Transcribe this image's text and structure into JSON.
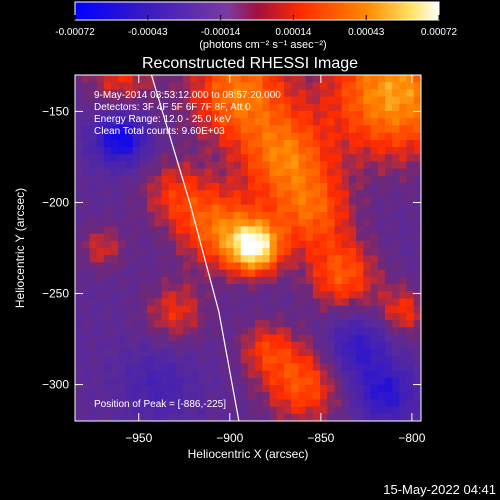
{
  "chart_data": {
    "type": "heatmap",
    "title": "Reconstructed RHESSI Image",
    "xlabel": "Heliocentric X (arcsec)",
    "ylabel": "Heliocentric Y (arcsec)",
    "xlim": [
      -985,
      -795
    ],
    "ylim": [
      -320,
      -130
    ],
    "xticks": [
      -950,
      -900,
      -850,
      -800
    ],
    "yticks": [
      -150,
      -200,
      -250,
      -300
    ],
    "colorbar": {
      "ticks": [
        "-0.00072",
        "-0.00043",
        "-0.00014",
        "0.00014",
        "0.00043",
        "0.00072"
      ],
      "units_label": "(photons cm⁻² s⁻¹ asec⁻²)",
      "range": [
        -0.00072,
        0.00072
      ],
      "colors": [
        "#0000ff",
        "#5a2a9a",
        "#ff2a00",
        "#ff8800",
        "#ffff60",
        "#ffffff"
      ]
    },
    "annotations": [
      "9-May-2014 08:53:12.000 to 08:57:20.000",
      "Detectors: 3F 4F 5F 6F 7F 8F, Att 0",
      "Energy Range: 12.0 - 25.0 keV",
      "Clean     Total counts: 9.60E+03"
    ],
    "peak_label": "Position of Peak = [-886,-225]",
    "peak_position": [
      -886,
      -225
    ],
    "limb_arc": [
      [
        -943,
        -130
      ],
      [
        -922,
        -200
      ],
      [
        -906,
        -260
      ],
      [
        -895,
        -320
      ]
    ],
    "blobs": [
      {
        "x": -810,
        "y": -140,
        "r": 45,
        "v": 0.0006
      },
      {
        "x": -895,
        "y": -140,
        "r": 35,
        "v": 0.0005
      },
      {
        "x": -870,
        "y": -175,
        "r": 30,
        "v": 0.00045
      },
      {
        "x": -886,
        "y": -225,
        "r": 18,
        "v": 0.00072
      },
      {
        "x": -905,
        "y": -215,
        "r": 28,
        "v": 0.00045
      },
      {
        "x": -855,
        "y": -205,
        "r": 28,
        "v": 0.0004
      },
      {
        "x": -838,
        "y": -240,
        "r": 25,
        "v": 0.0004
      },
      {
        "x": -930,
        "y": -195,
        "r": 25,
        "v": 0.00028
      },
      {
        "x": -930,
        "y": -260,
        "r": 22,
        "v": 0.00028
      },
      {
        "x": -960,
        "y": -130,
        "r": 25,
        "v": 0.00028
      },
      {
        "x": -970,
        "y": -225,
        "r": 16,
        "v": 0.00025
      },
      {
        "x": -860,
        "y": -300,
        "r": 28,
        "v": 0.0004
      },
      {
        "x": -805,
        "y": -260,
        "r": 18,
        "v": 0.0003
      },
      {
        "x": -880,
        "y": -280,
        "r": 20,
        "v": 0.00028
      },
      {
        "x": -960,
        "y": -165,
        "r": 18,
        "v": -0.00055
      },
      {
        "x": -940,
        "y": -300,
        "r": 25,
        "v": -0.0002
      },
      {
        "x": -830,
        "y": -280,
        "r": 22,
        "v": -0.00035
      },
      {
        "x": -815,
        "y": -305,
        "r": 20,
        "v": -0.0004
      }
    ]
  },
  "timestamp": "15-May-2022 04:41"
}
